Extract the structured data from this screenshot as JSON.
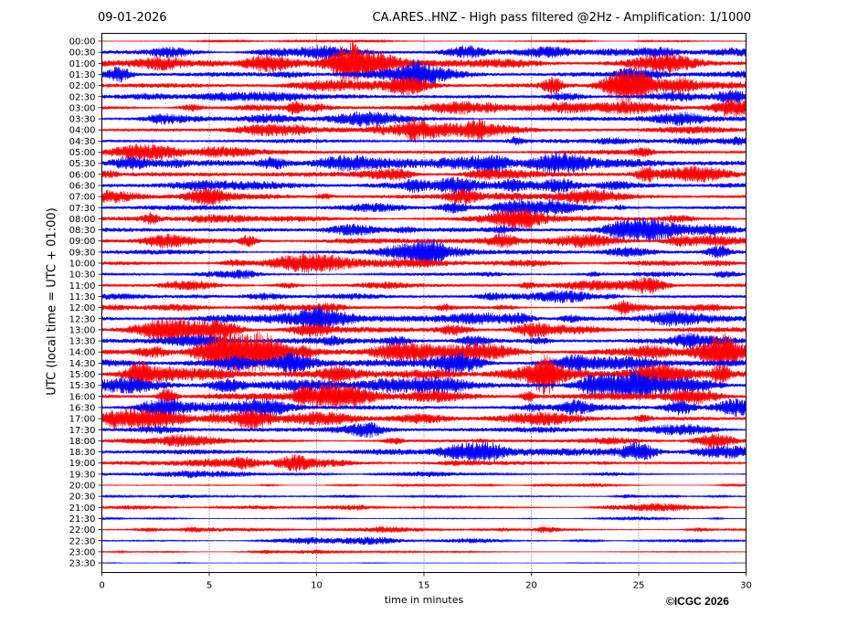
{
  "header": {
    "date": "09-01-2026",
    "title": "CA.ARES..HNZ - High pass filtered @2Hz - Amplification: 1/1000"
  },
  "footer": {
    "copyright": "©ICGC 2026"
  },
  "colors": {
    "series_a": "#ff0000",
    "series_b": "#0000ff",
    "grid": "#000000",
    "axes": "#000000"
  },
  "chart_data": {
    "type": "line",
    "title": "CA.ARES..HNZ - High pass filtered @2Hz - Amplification: 1/1000",
    "xlabel": "time in minutes",
    "ylabel": "UTC (local time = UTC + 01:00)",
    "xlim": [
      0,
      30
    ],
    "x_ticks": [
      0,
      5,
      10,
      15,
      20,
      25,
      30
    ],
    "grid": "vertical dotted at x ticks",
    "rows": [
      {
        "label": "00:00",
        "color": "red",
        "amplitude": 0.08
      },
      {
        "label": "00:30",
        "color": "blue",
        "amplitude": 0.45
      },
      {
        "label": "01:00",
        "color": "red",
        "amplitude": 0.75
      },
      {
        "label": "01:30",
        "color": "blue",
        "amplitude": 0.85
      },
      {
        "label": "02:00",
        "color": "red",
        "amplitude": 0.8
      },
      {
        "label": "02:30",
        "color": "blue",
        "amplitude": 0.55
      },
      {
        "label": "03:00",
        "color": "red",
        "amplitude": 0.55
      },
      {
        "label": "03:30",
        "color": "blue",
        "amplitude": 0.6
      },
      {
        "label": "04:00",
        "color": "red",
        "amplitude": 0.55
      },
      {
        "label": "04:30",
        "color": "blue",
        "amplitude": 0.45
      },
      {
        "label": "05:00",
        "color": "red",
        "amplitude": 0.55
      },
      {
        "label": "05:30",
        "color": "blue",
        "amplitude": 0.75
      },
      {
        "label": "06:00",
        "color": "red",
        "amplitude": 0.65
      },
      {
        "label": "06:30",
        "color": "blue",
        "amplitude": 0.55
      },
      {
        "label": "07:00",
        "color": "red",
        "amplitude": 0.75
      },
      {
        "label": "07:30",
        "color": "blue",
        "amplitude": 0.6
      },
      {
        "label": "08:00",
        "color": "red",
        "amplitude": 0.55
      },
      {
        "label": "08:30",
        "color": "blue",
        "amplitude": 0.55
      },
      {
        "label": "09:00",
        "color": "red",
        "amplitude": 0.65
      },
      {
        "label": "09:30",
        "color": "blue",
        "amplitude": 0.55
      },
      {
        "label": "10:00",
        "color": "red",
        "amplitude": 0.4
      },
      {
        "label": "10:30",
        "color": "blue",
        "amplitude": 0.35
      },
      {
        "label": "11:00",
        "color": "red",
        "amplitude": 0.45
      },
      {
        "label": "11:30",
        "color": "blue",
        "amplitude": 0.35
      },
      {
        "label": "12:00",
        "color": "red",
        "amplitude": 0.45
      },
      {
        "label": "12:30",
        "color": "blue",
        "amplitude": 0.65
      },
      {
        "label": "13:00",
        "color": "red",
        "amplitude": 0.6
      },
      {
        "label": "13:30",
        "color": "blue",
        "amplitude": 0.7
      },
      {
        "label": "14:00",
        "color": "red",
        "amplitude": 0.9
      },
      {
        "label": "14:30",
        "color": "blue",
        "amplitude": 1.0
      },
      {
        "label": "15:00",
        "color": "red",
        "amplitude": 0.95
      },
      {
        "label": "15:30",
        "color": "blue",
        "amplitude": 0.8
      },
      {
        "label": "16:00",
        "color": "red",
        "amplitude": 0.8
      },
      {
        "label": "16:30",
        "color": "blue",
        "amplitude": 0.75
      },
      {
        "label": "17:00",
        "color": "red",
        "amplitude": 0.6
      },
      {
        "label": "17:30",
        "color": "blue",
        "amplitude": 0.5
      },
      {
        "label": "18:00",
        "color": "red",
        "amplitude": 0.45
      },
      {
        "label": "18:30",
        "color": "blue",
        "amplitude": 0.55
      },
      {
        "label": "19:00",
        "color": "red",
        "amplitude": 0.45
      },
      {
        "label": "19:30",
        "color": "blue",
        "amplitude": 0.25
      },
      {
        "label": "20:00",
        "color": "red",
        "amplitude": 0.12
      },
      {
        "label": "20:30",
        "color": "blue",
        "amplitude": 0.15
      },
      {
        "label": "21:00",
        "color": "red",
        "amplitude": 0.18
      },
      {
        "label": "21:30",
        "color": "blue",
        "amplitude": 0.1
      },
      {
        "label": "22:00",
        "color": "red",
        "amplitude": 0.2
      },
      {
        "label": "22:30",
        "color": "blue",
        "amplitude": 0.18
      },
      {
        "label": "23:00",
        "color": "red",
        "amplitude": 0.12
      },
      {
        "label": "23:30",
        "color": "blue",
        "amplitude": 0.04
      }
    ]
  }
}
